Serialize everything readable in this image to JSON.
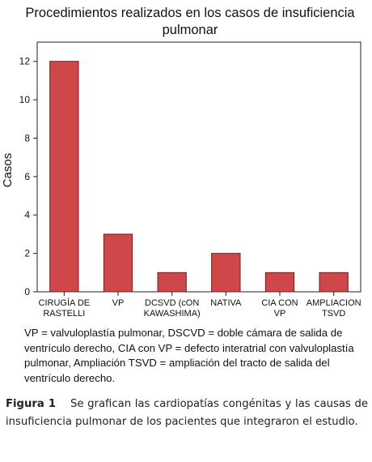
{
  "chart_data": {
    "type": "bar",
    "title": "Procedimientos realizados en los casos de insuficiencia pulmonar",
    "xlabel": "",
    "ylabel": "Casos",
    "categories": [
      [
        "CIRUGÍA DE",
        "RASTELLI"
      ],
      [
        "VP"
      ],
      [
        "DCSVD (cON",
        "KAWASHIMA)"
      ],
      [
        "NATIVA"
      ],
      [
        "CIA CON",
        "VP"
      ],
      [
        "AMPLIACION",
        "TSVD"
      ]
    ],
    "values": [
      12,
      3,
      1,
      2,
      1,
      1
    ],
    "ylim": [
      0,
      13
    ],
    "yticks": [
      0,
      2,
      4,
      6,
      8,
      10,
      12
    ],
    "grid": false,
    "bar_color": "#d0474a",
    "bar_stroke": "#6b2020"
  },
  "note": "VP = valvuloplastía pulmonar, DSCVD = doble cámara de salida de ventrículo derecho, CIA con VP = defecto interatrial con valvuloplastía pulmonar, Ampliación TSVD = ampliación del tracto de salida del ventrículo derecho.",
  "caption": {
    "label": "Figura 1",
    "text": "Se grafican las cardiopatías congénitas y las causas de insuficiencia pulmonar de los pacientes que integraron el estudio."
  }
}
